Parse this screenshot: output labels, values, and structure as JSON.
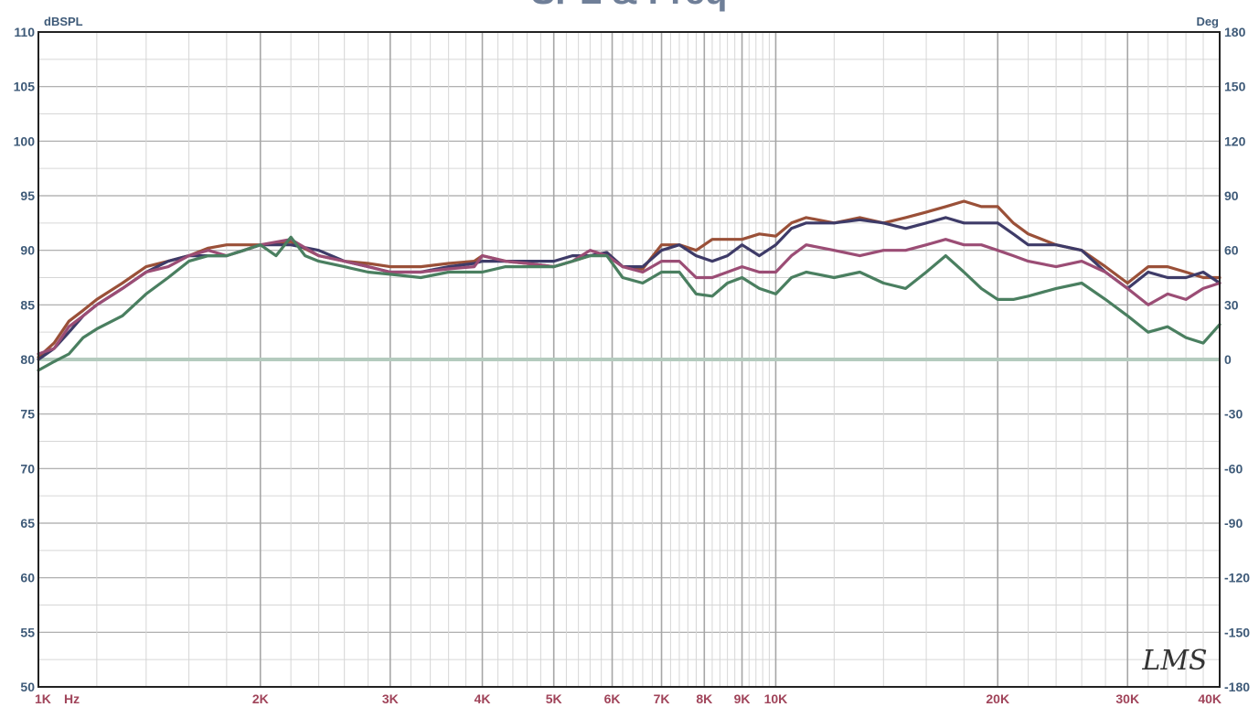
{
  "chart_data": {
    "type": "line",
    "title": "SPL & Freq",
    "y_left_unit": "dBSPL",
    "y_right_unit": "Deg",
    "x_unit": "Hz",
    "x_scale": "log",
    "xlim": [
      1000,
      40000
    ],
    "ylim_left": [
      50,
      110
    ],
    "ylim_right": [
      -180,
      180
    ],
    "grid": true,
    "logo_text": "LMS",
    "colors": {
      "grid": "#a6a6a6",
      "grid_minor": "#d6d6d6",
      "frame": "#222222",
      "zero_line": "#b4cbbe"
    },
    "x_ticks": [
      {
        "value": 1000,
        "label": "1K"
      },
      {
        "value": 2000,
        "label": "2K"
      },
      {
        "value": 3000,
        "label": "3K"
      },
      {
        "value": 4000,
        "label": "4K"
      },
      {
        "value": 5000,
        "label": "5K"
      },
      {
        "value": 6000,
        "label": "6K"
      },
      {
        "value": 7000,
        "label": "7K"
      },
      {
        "value": 8000,
        "label": "8K"
      },
      {
        "value": 9000,
        "label": "9K"
      },
      {
        "value": 10000,
        "label": "10K"
      },
      {
        "value": 20000,
        "label": "20K"
      },
      {
        "value": 30000,
        "label": "30K"
      },
      {
        "value": 40000,
        "label": "40K"
      }
    ],
    "y_left_ticks": [
      "110",
      "105",
      "100",
      "95",
      "90",
      "85",
      "80",
      "75",
      "70",
      "65",
      "60",
      "55",
      "50"
    ],
    "y_right_ticks": [
      "180",
      "150",
      "120",
      "90",
      "60",
      "30",
      "0",
      "-30",
      "-60",
      "-90",
      "-120",
      "-150",
      "-180"
    ],
    "series": [
      {
        "color": "#9a5038",
        "x": [
          1000,
          1050,
          1100,
          1150,
          1200,
          1300,
          1400,
          1500,
          1600,
          1700,
          1800,
          1900,
          2000,
          2200,
          2400,
          2600,
          2800,
          3000,
          3300,
          3600,
          3900,
          4000,
          4300,
          4600,
          5000,
          5300,
          5600,
          5900,
          6200,
          6600,
          7000,
          7400,
          7800,
          8200,
          8600,
          9000,
          9500,
          10000,
          10500,
          11000,
          12000,
          13000,
          14000,
          15000,
          16000,
          17000,
          18000,
          19000,
          20000,
          21000,
          22000,
          24000,
          26000,
          28000,
          30000,
          32000,
          34000,
          36000,
          38000,
          40000
        ],
        "values": [
          80.2,
          81.5,
          83.5,
          84.5,
          85.5,
          87.0,
          88.5,
          89.0,
          89.5,
          90.2,
          90.5,
          90.5,
          90.5,
          90.8,
          89.5,
          89.0,
          88.8,
          88.5,
          88.5,
          88.8,
          89.0,
          89.5,
          89.0,
          88.8,
          88.5,
          89.0,
          89.5,
          89.8,
          88.5,
          88.3,
          90.5,
          90.5,
          90.0,
          91.0,
          91.0,
          91.0,
          91.5,
          91.3,
          92.5,
          93.0,
          92.5,
          93.0,
          92.5,
          93.0,
          93.5,
          94.0,
          94.5,
          94.0,
          94.0,
          92.5,
          91.5,
          90.5,
          90.0,
          88.5,
          87.0,
          88.5,
          88.5,
          88.0,
          87.5,
          87.5
        ]
      },
      {
        "color": "#3e3b68",
        "x": [
          1000,
          1050,
          1100,
          1150,
          1200,
          1300,
          1400,
          1500,
          1600,
          1700,
          1800,
          1900,
          2000,
          2200,
          2400,
          2600,
          2800,
          3000,
          3300,
          3600,
          3900,
          4000,
          4300,
          4600,
          5000,
          5300,
          5600,
          5900,
          6200,
          6600,
          7000,
          7400,
          7800,
          8200,
          8600,
          9000,
          9500,
          10000,
          10500,
          11000,
          12000,
          13000,
          14000,
          15000,
          16000,
          17000,
          18000,
          19000,
          20000,
          21000,
          22000,
          24000,
          26000,
          28000,
          30000,
          32000,
          34000,
          36000,
          38000,
          40000
        ],
        "values": [
          80.0,
          81.0,
          82.5,
          84.0,
          85.0,
          86.5,
          88.0,
          89.0,
          89.5,
          89.5,
          89.5,
          90.0,
          90.5,
          90.5,
          90.0,
          89.0,
          88.5,
          88.0,
          88.0,
          88.5,
          88.8,
          89.0,
          89.0,
          89.0,
          89.0,
          89.5,
          89.5,
          89.8,
          88.5,
          88.5,
          90.0,
          90.5,
          89.5,
          89.0,
          89.5,
          90.5,
          89.5,
          90.5,
          92.0,
          92.5,
          92.5,
          92.8,
          92.5,
          92.0,
          92.5,
          93.0,
          92.5,
          92.5,
          92.5,
          91.5,
          90.5,
          90.5,
          90.0,
          88.0,
          86.5,
          88.0,
          87.5,
          87.5,
          88.0,
          87.0
        ]
      },
      {
        "color": "#9b4d75",
        "x": [
          1000,
          1050,
          1100,
          1150,
          1200,
          1300,
          1400,
          1500,
          1600,
          1700,
          1800,
          1900,
          2000,
          2200,
          2400,
          2600,
          2800,
          3000,
          3300,
          3600,
          3900,
          4000,
          4300,
          4600,
          5000,
          5300,
          5600,
          5900,
          6200,
          6600,
          7000,
          7400,
          7800,
          8200,
          8600,
          9000,
          9500,
          10000,
          10500,
          11000,
          12000,
          13000,
          14000,
          15000,
          16000,
          17000,
          18000,
          19000,
          20000,
          21000,
          22000,
          24000,
          26000,
          28000,
          30000,
          32000,
          34000,
          36000,
          38000,
          40000
        ],
        "values": [
          80.5,
          81.0,
          83.0,
          84.0,
          85.0,
          86.5,
          88.0,
          88.5,
          89.5,
          90.0,
          89.5,
          90.0,
          90.5,
          91.0,
          89.5,
          89.0,
          88.5,
          88.0,
          88.0,
          88.3,
          88.5,
          89.5,
          89.0,
          88.8,
          88.5,
          89.0,
          90.0,
          89.5,
          88.5,
          88.0,
          89.0,
          89.0,
          87.5,
          87.5,
          88.0,
          88.5,
          88.0,
          88.0,
          89.5,
          90.5,
          90.0,
          89.5,
          90.0,
          90.0,
          90.5,
          91.0,
          90.5,
          90.5,
          90.0,
          89.5,
          89.0,
          88.5,
          89.0,
          88.0,
          86.5,
          85.0,
          86.0,
          85.5,
          86.5,
          87.0
        ]
      },
      {
        "color": "#4a7f60",
        "x": [
          1000,
          1050,
          1100,
          1150,
          1200,
          1300,
          1400,
          1500,
          1600,
          1700,
          1800,
          1900,
          2000,
          2100,
          2200,
          2300,
          2400,
          2600,
          2800,
          3000,
          3300,
          3600,
          3900,
          4000,
          4300,
          4600,
          5000,
          5300,
          5600,
          5900,
          6200,
          6600,
          7000,
          7400,
          7800,
          8200,
          8600,
          9000,
          9500,
          10000,
          10500,
          11000,
          12000,
          13000,
          14000,
          15000,
          16000,
          17000,
          18000,
          19000,
          20000,
          21000,
          22000,
          24000,
          26000,
          28000,
          30000,
          32000,
          34000,
          36000,
          38000,
          40000
        ],
        "values": [
          79.0,
          79.8,
          80.5,
          82.0,
          82.8,
          84.0,
          86.0,
          87.5,
          89.0,
          89.5,
          89.5,
          90.0,
          90.5,
          89.5,
          91.2,
          89.5,
          89.0,
          88.5,
          88.0,
          87.8,
          87.5,
          88.0,
          88.0,
          88.0,
          88.5,
          88.5,
          88.5,
          89.0,
          89.5,
          89.5,
          87.5,
          87.0,
          88.0,
          88.0,
          86.0,
          85.8,
          87.0,
          87.5,
          86.5,
          86.0,
          87.5,
          88.0,
          87.5,
          88.0,
          87.0,
          86.5,
          88.0,
          89.5,
          88.0,
          86.5,
          85.5,
          85.5,
          85.8,
          86.5,
          87.0,
          85.5,
          84.0,
          82.5,
          83.0,
          82.0,
          81.5,
          83.2
        ]
      }
    ]
  }
}
